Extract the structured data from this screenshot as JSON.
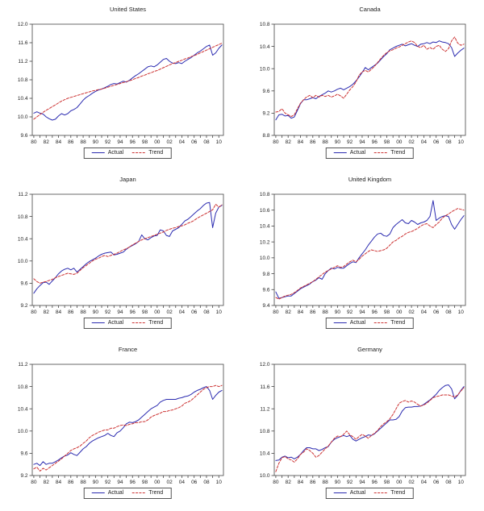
{
  "page": {
    "background": "#ffffff"
  },
  "colors": {
    "actual": "#2b2bb0",
    "trend": "#cc3333",
    "axis": "#444444",
    "text": "#222222"
  },
  "legend": {
    "actual_label": "Actual",
    "trend_label": "Trend"
  },
  "x_axis": {
    "min": 1979.75,
    "max": 2010.75,
    "minor_tick_every": 1,
    "tick_years": [
      1980,
      1982,
      1984,
      1986,
      1988,
      1990,
      1992,
      1994,
      1996,
      1998,
      2000,
      2002,
      2004,
      2006,
      2008,
      2010
    ],
    "tick_labels": [
      "80",
      "82",
      "84",
      "86",
      "88",
      "90",
      "92",
      "94",
      "96",
      "98",
      "00",
      "02",
      "04",
      "06",
      "08",
      "10"
    ]
  },
  "chart_data": [
    {
      "type": "line",
      "title": "United States",
      "xlabel": "",
      "ylabel": "",
      "ylim": [
        9.6,
        12.0
      ],
      "yticks": [
        9.6,
        10.0,
        10.4,
        10.8,
        11.2,
        11.6,
        12.0
      ],
      "x_start": 1980,
      "x_step": 0.5,
      "grid": false,
      "legend_position": "bottom",
      "series": [
        {
          "name": "Actual",
          "color_key": "actual",
          "style": "solid",
          "values": [
            10.08,
            10.11,
            10.08,
            10.06,
            10.0,
            9.96,
            9.93,
            9.95,
            10.02,
            10.07,
            10.04,
            10.07,
            10.13,
            10.16,
            10.2,
            10.28,
            10.36,
            10.42,
            10.46,
            10.51,
            10.55,
            10.58,
            10.6,
            10.63,
            10.66,
            10.7,
            10.72,
            10.71,
            10.74,
            10.77,
            10.75,
            10.79,
            10.84,
            10.89,
            10.93,
            10.98,
            11.03,
            11.08,
            11.1,
            11.08,
            11.12,
            11.18,
            11.24,
            11.26,
            11.2,
            11.16,
            11.15,
            11.17,
            11.15,
            11.2,
            11.24,
            11.28,
            11.33,
            11.38,
            11.42,
            11.47,
            11.52,
            11.55,
            11.33,
            11.38,
            11.48,
            11.55
          ]
        },
        {
          "name": "Trend",
          "color_key": "trend",
          "style": "dashed",
          "values": [
            9.95,
            10.0,
            10.05,
            10.1,
            10.14,
            10.18,
            10.22,
            10.26,
            10.3,
            10.34,
            10.37,
            10.4,
            10.42,
            10.44,
            10.46,
            10.48,
            10.5,
            10.52,
            10.54,
            10.56,
            10.57,
            10.59,
            10.6,
            10.62,
            10.64,
            10.66,
            10.68,
            10.7,
            10.72,
            10.74,
            10.76,
            10.78,
            10.8,
            10.83,
            10.85,
            10.88,
            10.9,
            10.93,
            10.95,
            10.98,
            11.0,
            11.03,
            11.06,
            11.09,
            11.12,
            11.15,
            11.17,
            11.2,
            11.22,
            11.25,
            11.27,
            11.3,
            11.32,
            11.35,
            11.38,
            11.41,
            11.44,
            11.47,
            11.5,
            11.53,
            11.56,
            11.59
          ]
        }
      ]
    },
    {
      "type": "line",
      "title": "Canada",
      "xlabel": "",
      "ylabel": "",
      "ylim": [
        8.8,
        10.8
      ],
      "yticks": [
        8.8,
        9.2,
        9.6,
        10.0,
        10.4,
        10.8
      ],
      "x_start": 1980,
      "x_step": 0.5,
      "grid": false,
      "legend_position": "bottom",
      "series": [
        {
          "name": "Actual",
          "color_key": "actual",
          "style": "solid",
          "values": [
            9.08,
            9.17,
            9.18,
            9.15,
            9.16,
            9.11,
            9.13,
            9.25,
            9.37,
            9.44,
            9.44,
            9.46,
            9.48,
            9.46,
            9.5,
            9.53,
            9.56,
            9.6,
            9.58,
            9.6,
            9.63,
            9.65,
            9.62,
            9.65,
            9.68,
            9.72,
            9.78,
            9.85,
            9.93,
            10.02,
            9.98,
            10.02,
            10.06,
            10.1,
            10.16,
            10.22,
            10.27,
            10.34,
            10.37,
            10.4,
            10.42,
            10.44,
            10.41,
            10.43,
            10.45,
            10.42,
            10.4,
            10.44,
            10.45,
            10.47,
            10.45,
            10.48,
            10.47,
            10.5,
            10.48,
            10.47,
            10.45,
            10.38,
            10.22,
            10.28,
            10.33,
            10.37
          ]
        },
        {
          "name": "Trend",
          "color_key": "trend",
          "style": "dashed",
          "values": [
            9.22,
            9.23,
            9.28,
            9.2,
            9.17,
            9.14,
            9.17,
            9.28,
            9.38,
            9.44,
            9.49,
            9.52,
            9.48,
            9.52,
            9.49,
            9.52,
            9.5,
            9.52,
            9.49,
            9.51,
            9.54,
            9.51,
            9.47,
            9.54,
            9.62,
            9.68,
            9.76,
            9.88,
            9.94,
            9.97,
            9.94,
            9.99,
            10.04,
            10.11,
            10.18,
            10.24,
            10.29,
            10.32,
            10.34,
            10.37,
            10.39,
            10.42,
            10.45,
            10.48,
            10.5,
            10.47,
            10.4,
            10.38,
            10.42,
            10.35,
            10.38,
            10.35,
            10.4,
            10.42,
            10.35,
            10.31,
            10.36,
            10.5,
            10.57,
            10.46,
            10.42,
            10.44
          ]
        }
      ]
    },
    {
      "type": "line",
      "title": "Japan",
      "xlabel": "",
      "ylabel": "",
      "ylim": [
        9.2,
        11.2
      ],
      "yticks": [
        9.2,
        9.6,
        10.0,
        10.4,
        10.8,
        11.2
      ],
      "x_start": 1980,
      "x_step": 0.5,
      "grid": false,
      "legend_position": "bottom",
      "series": [
        {
          "name": "Actual",
          "color_key": "actual",
          "style": "solid",
          "values": [
            9.42,
            9.5,
            9.56,
            9.61,
            9.62,
            9.58,
            9.64,
            9.7,
            9.77,
            9.82,
            9.85,
            9.87,
            9.84,
            9.87,
            9.8,
            9.85,
            9.9,
            9.95,
            9.99,
            10.02,
            10.05,
            10.09,
            10.12,
            10.14,
            10.15,
            10.16,
            10.11,
            10.12,
            10.14,
            10.16,
            10.21,
            10.25,
            10.28,
            10.31,
            10.35,
            10.47,
            10.4,
            10.38,
            10.42,
            10.45,
            10.46,
            10.56,
            10.54,
            10.46,
            10.44,
            10.54,
            10.57,
            10.6,
            10.66,
            10.72,
            10.75,
            10.8,
            10.85,
            10.9,
            10.94,
            11.0,
            11.04,
            11.05,
            10.6,
            10.86,
            10.97,
            11.0
          ]
        },
        {
          "name": "Trend",
          "color_key": "trend",
          "style": "dashed",
          "values": [
            9.68,
            9.63,
            9.6,
            9.62,
            9.63,
            9.65,
            9.67,
            9.7,
            9.72,
            9.74,
            9.76,
            9.78,
            9.77,
            9.76,
            9.78,
            9.83,
            9.88,
            9.92,
            9.96,
            10.0,
            10.03,
            10.05,
            10.08,
            10.1,
            10.08,
            10.1,
            10.12,
            10.14,
            10.17,
            10.2,
            10.22,
            10.25,
            10.29,
            10.32,
            10.35,
            10.38,
            10.4,
            10.42,
            10.44,
            10.46,
            10.48,
            10.5,
            10.52,
            10.55,
            10.57,
            10.59,
            10.6,
            10.62,
            10.63,
            10.65,
            10.68,
            10.7,
            10.73,
            10.77,
            10.8,
            10.83,
            10.86,
            10.89,
            10.92,
            11.02,
            10.97,
            11.01
          ]
        }
      ]
    },
    {
      "type": "line",
      "title": "United Kingdom",
      "xlabel": "",
      "ylabel": "",
      "ylim": [
        9.4,
        10.8
      ],
      "yticks": [
        9.4,
        9.6,
        9.8,
        10.0,
        10.2,
        10.4,
        10.6,
        10.8
      ],
      "x_start": 1980,
      "x_step": 0.5,
      "grid": false,
      "legend_position": "bottom",
      "series": [
        {
          "name": "Actual",
          "color_key": "actual",
          "style": "solid",
          "values": [
            9.57,
            9.49,
            9.5,
            9.51,
            9.52,
            9.52,
            9.55,
            9.58,
            9.61,
            9.63,
            9.65,
            9.67,
            9.7,
            9.72,
            9.75,
            9.73,
            9.8,
            9.84,
            9.87,
            9.86,
            9.88,
            9.87,
            9.87,
            9.9,
            9.93,
            9.95,
            9.94,
            10.0,
            10.05,
            10.1,
            10.16,
            10.21,
            10.26,
            10.3,
            10.31,
            10.28,
            10.27,
            10.3,
            10.38,
            10.42,
            10.45,
            10.48,
            10.44,
            10.43,
            10.47,
            10.45,
            10.42,
            10.44,
            10.45,
            10.47,
            10.52,
            10.72,
            10.47,
            10.5,
            10.52,
            10.53,
            10.52,
            10.42,
            10.36,
            10.42,
            10.48,
            10.53
          ]
        },
        {
          "name": "Trend",
          "color_key": "trend",
          "style": "dashed",
          "values": [
            9.5,
            9.48,
            9.5,
            9.52,
            9.53,
            9.54,
            9.56,
            9.59,
            9.62,
            9.64,
            9.66,
            9.68,
            9.7,
            9.73,
            9.76,
            9.79,
            9.82,
            9.84,
            9.86,
            9.88,
            9.9,
            9.88,
            9.89,
            9.92,
            9.95,
            9.97,
            9.95,
            9.98,
            10.02,
            10.05,
            10.08,
            10.1,
            10.09,
            10.08,
            10.09,
            10.1,
            10.12,
            10.16,
            10.2,
            10.22,
            10.25,
            10.27,
            10.3,
            10.32,
            10.33,
            10.35,
            10.37,
            10.4,
            10.42,
            10.43,
            10.4,
            10.38,
            10.42,
            10.45,
            10.5,
            10.53,
            10.55,
            10.58,
            10.6,
            10.62,
            10.61,
            10.6
          ]
        }
      ]
    },
    {
      "type": "line",
      "title": "France",
      "xlabel": "",
      "ylabel": "",
      "ylim": [
        9.2,
        11.2
      ],
      "yticks": [
        9.2,
        9.6,
        10.0,
        10.4,
        10.8,
        11.2
      ],
      "x_start": 1980,
      "x_step": 0.5,
      "grid": false,
      "legend_position": "bottom",
      "series": [
        {
          "name": "Actual",
          "color_key": "actual",
          "style": "solid",
          "values": [
            9.4,
            9.42,
            9.38,
            9.45,
            9.4,
            9.42,
            9.42,
            9.45,
            9.48,
            9.52,
            9.55,
            9.57,
            9.61,
            9.58,
            9.56,
            9.62,
            9.68,
            9.72,
            9.78,
            9.82,
            9.85,
            9.88,
            9.9,
            9.92,
            9.96,
            9.92,
            9.9,
            9.97,
            10.0,
            10.06,
            10.13,
            10.16,
            10.15,
            10.17,
            10.2,
            10.25,
            10.3,
            10.35,
            10.4,
            10.43,
            10.46,
            10.52,
            10.55,
            10.57,
            10.57,
            10.57,
            10.57,
            10.59,
            10.6,
            10.62,
            10.63,
            10.66,
            10.7,
            10.73,
            10.75,
            10.78,
            10.8,
            10.73,
            10.57,
            10.64,
            10.7,
            10.73
          ]
        },
        {
          "name": "Trend",
          "color_key": "trend",
          "style": "dashed",
          "values": [
            9.32,
            9.35,
            9.28,
            9.33,
            9.3,
            9.34,
            9.38,
            9.42,
            9.46,
            9.5,
            9.55,
            9.6,
            9.65,
            9.68,
            9.7,
            9.73,
            9.78,
            9.82,
            9.88,
            9.92,
            9.95,
            9.98,
            10.0,
            10.02,
            10.02,
            10.05,
            10.05,
            10.08,
            10.1,
            10.11,
            10.1,
            10.12,
            10.13,
            10.15,
            10.15,
            10.17,
            10.17,
            10.2,
            10.25,
            10.28,
            10.3,
            10.32,
            10.35,
            10.35,
            10.37,
            10.38,
            10.4,
            10.42,
            10.45,
            10.5,
            10.52,
            10.55,
            10.6,
            10.65,
            10.7,
            10.75,
            10.78,
            10.8,
            10.8,
            10.82,
            10.8,
            10.82
          ]
        }
      ]
    },
    {
      "type": "line",
      "title": "Germany",
      "xlabel": "",
      "ylabel": "",
      "ylim": [
        10.0,
        12.0
      ],
      "yticks": [
        10.0,
        10.4,
        10.8,
        11.2,
        11.6,
        12.0
      ],
      "x_start": 1980,
      "x_step": 0.5,
      "grid": false,
      "legend_position": "bottom",
      "series": [
        {
          "name": "Actual",
          "color_key": "actual",
          "style": "solid",
          "values": [
            10.27,
            10.28,
            10.33,
            10.35,
            10.32,
            10.33,
            10.3,
            10.33,
            10.38,
            10.45,
            10.5,
            10.5,
            10.48,
            10.48,
            10.45,
            10.47,
            10.5,
            10.52,
            10.6,
            10.65,
            10.68,
            10.7,
            10.72,
            10.7,
            10.72,
            10.65,
            10.62,
            10.65,
            10.68,
            10.7,
            10.73,
            10.72,
            10.75,
            10.8,
            10.85,
            10.9,
            10.95,
            11.0,
            11.0,
            11.01,
            11.06,
            11.16,
            11.22,
            11.23,
            11.23,
            11.24,
            11.24,
            11.25,
            11.28,
            11.32,
            11.36,
            11.41,
            11.46,
            11.53,
            11.58,
            11.62,
            11.63,
            11.56,
            11.38,
            11.44,
            11.53,
            11.6
          ]
        },
        {
          "name": "Trend",
          "color_key": "trend",
          "style": "dashed",
          "values": [
            10.07,
            10.22,
            10.32,
            10.34,
            10.3,
            10.28,
            10.24,
            10.3,
            10.38,
            10.42,
            10.48,
            10.45,
            10.4,
            10.33,
            10.36,
            10.42,
            10.48,
            10.53,
            10.6,
            10.67,
            10.71,
            10.7,
            10.74,
            10.8,
            10.73,
            10.7,
            10.65,
            10.7,
            10.74,
            10.71,
            10.67,
            10.72,
            10.76,
            10.81,
            10.88,
            10.93,
            10.97,
            11.02,
            11.1,
            11.2,
            11.3,
            11.33,
            11.35,
            11.32,
            11.34,
            11.32,
            11.28,
            11.25,
            11.27,
            11.3,
            11.35,
            11.4,
            11.42,
            11.43,
            11.45,
            11.45,
            11.45,
            11.43,
            11.41,
            11.45,
            11.52,
            11.58
          ]
        }
      ]
    }
  ]
}
